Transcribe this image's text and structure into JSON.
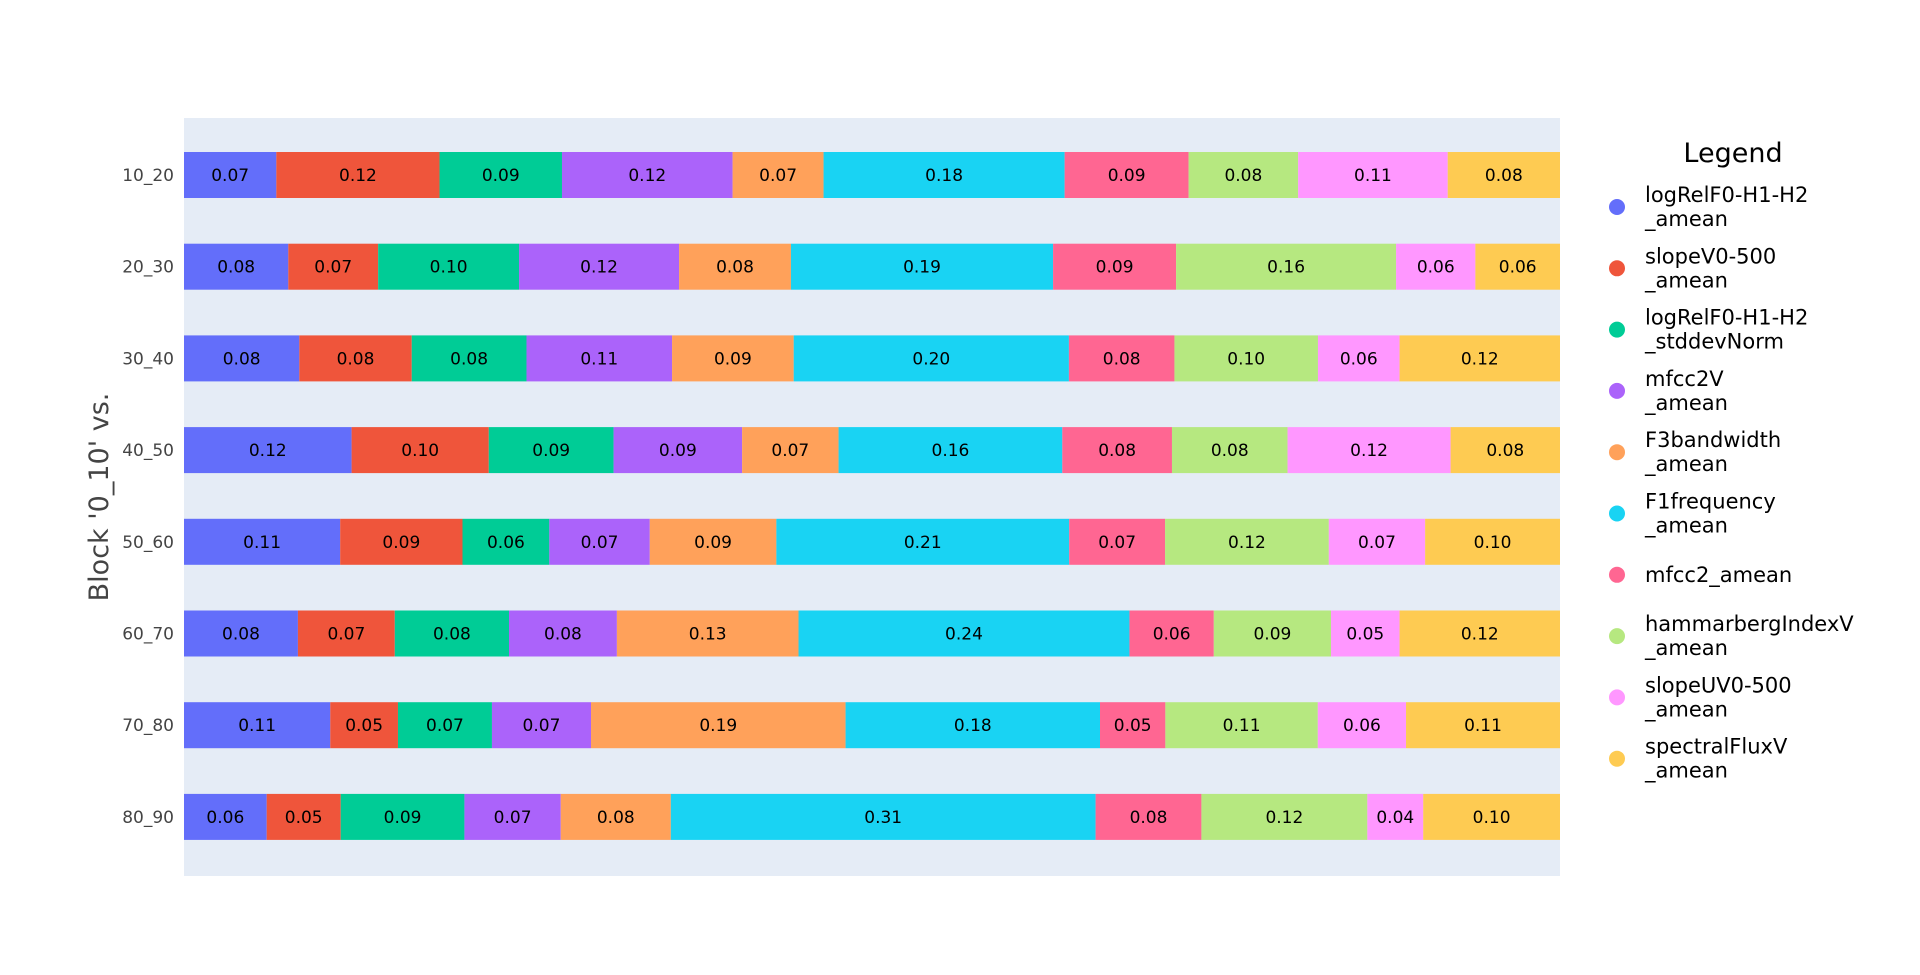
{
  "chart_data": {
    "type": "bar",
    "orientation": "horizontal",
    "stacked": true,
    "title": "",
    "xlabel": "",
    "ylabel": "Block '0_10' vs.",
    "xlim": [
      0,
      1
    ],
    "categories": [
      "10_20",
      "20_30",
      "30_40",
      "40_50",
      "50_60",
      "60_70",
      "70_80",
      "80_90"
    ],
    "legend": {
      "title": "Legend",
      "position": "right"
    },
    "grid": false,
    "series": [
      {
        "name": "logRelF0-H1-H2_amean",
        "legend_lines": [
          "logRelF0-H1-H2",
          "_amean"
        ],
        "color": "#636efa",
        "values": [
          0.0671,
          0.0758,
          0.0838,
          0.1218,
          0.1135,
          0.0828,
          0.1063,
          0.0601
        ],
        "labels": [
          "0.07",
          "0.08",
          "0.08",
          "0.12",
          "0.11",
          "0.08",
          "0.11",
          "0.06"
        ]
      },
      {
        "name": "slopeV0-500_amean",
        "legend_lines": [
          "slopeV0-500",
          "_amean"
        ],
        "color": "#ef553b",
        "values": [
          0.1186,
          0.0653,
          0.0817,
          0.0997,
          0.0889,
          0.0704,
          0.0492,
          0.0538
        ],
        "labels": [
          "0.12",
          "0.07",
          "0.08",
          "0.10",
          "0.09",
          "0.07",
          "0.05",
          "0.05"
        ]
      },
      {
        "name": "logRelF0-H1-H2_stddevNorm",
        "legend_lines": [
          "logRelF0-H1-H2",
          "_stddevNorm"
        ],
        "color": "#00cc96",
        "values": [
          0.089,
          0.1024,
          0.0834,
          0.0907,
          0.0631,
          0.083,
          0.0683,
          0.0899
        ],
        "labels": [
          "0.09",
          "0.10",
          "0.08",
          "0.09",
          "0.06",
          "0.08",
          "0.07",
          "0.09"
        ]
      },
      {
        "name": "mfcc2V_amean",
        "legend_lines": [
          "mfcc2V",
          "_amean"
        ],
        "color": "#ab63fa",
        "values": [
          0.124,
          0.1163,
          0.1058,
          0.0934,
          0.073,
          0.0784,
          0.072,
          0.07
        ],
        "labels": [
          "0.12",
          "0.12",
          "0.11",
          "0.09",
          "0.07",
          "0.08",
          "0.07",
          "0.07"
        ]
      },
      {
        "name": "F3bandwidth_amean",
        "legend_lines": [
          "F3bandwidth",
          "_amean"
        ],
        "color": "#ffa15a",
        "values": [
          0.0661,
          0.0813,
          0.0884,
          0.0701,
          0.092,
          0.132,
          0.185,
          0.08
        ],
        "labels": [
          "0.07",
          "0.08",
          "0.09",
          "0.07",
          "0.09",
          "0.13",
          "0.19",
          "0.08"
        ]
      },
      {
        "name": "F1frequency_amean",
        "legend_lines": [
          "F1frequency",
          "_amean"
        ],
        "color": "#19d3f3",
        "values": [
          0.1752,
          0.1905,
          0.2,
          0.1626,
          0.2128,
          0.2405,
          0.1849,
          0.3087
        ],
        "labels": [
          "0.18",
          "0.19",
          "0.20",
          "0.16",
          "0.21",
          "0.24",
          "0.18",
          "0.31"
        ]
      },
      {
        "name": "mfcc2_amean",
        "legend_lines": [
          "mfcc2_amean"
        ],
        "color": "#ff6692",
        "values": [
          0.0901,
          0.0894,
          0.0767,
          0.0797,
          0.0697,
          0.0613,
          0.0475,
          0.0769
        ],
        "labels": [
          "0.09",
          "0.09",
          "0.08",
          "0.08",
          "0.07",
          "0.06",
          "0.05",
          "0.08"
        ]
      },
      {
        "name": "hammarbergIndexV_amean",
        "legend_lines": [
          "hammarbergIndexV",
          "_amean"
        ],
        "color": "#b6e880",
        "values": [
          0.0796,
          0.1599,
          0.1043,
          0.084,
          0.119,
          0.0852,
          0.1108,
          0.1206
        ],
        "labels": [
          "0.08",
          "0.16",
          "0.10",
          "0.08",
          "0.12",
          "0.09",
          "0.11",
          "0.12"
        ]
      },
      {
        "name": "slopeUV0-500_amean",
        "legend_lines": [
          "slopeUV0-500",
          "_amean"
        ],
        "color": "#ff97ff",
        "values": [
          0.1087,
          0.0576,
          0.0593,
          0.1185,
          0.07,
          0.0498,
          0.0641,
          0.0406
        ],
        "labels": [
          "0.11",
          "0.06",
          "0.06",
          "0.12",
          "0.07",
          "0.05",
          "0.06",
          "0.04"
        ]
      },
      {
        "name": "spectralFluxV_amean",
        "legend_lines": [
          "spectralFluxV",
          "_amean"
        ],
        "color": "#fecb52",
        "values": [
          0.0816,
          0.0615,
          0.1166,
          0.0795,
          0.098,
          0.1166,
          0.1119,
          0.0994
        ],
        "labels": [
          "0.08",
          "0.06",
          "0.12",
          "0.08",
          "0.10",
          "0.12",
          "0.11",
          "0.10"
        ]
      }
    ],
    "colors": {
      "plot_background": "#e5ecf6",
      "page_background": "#ffffff"
    }
  }
}
